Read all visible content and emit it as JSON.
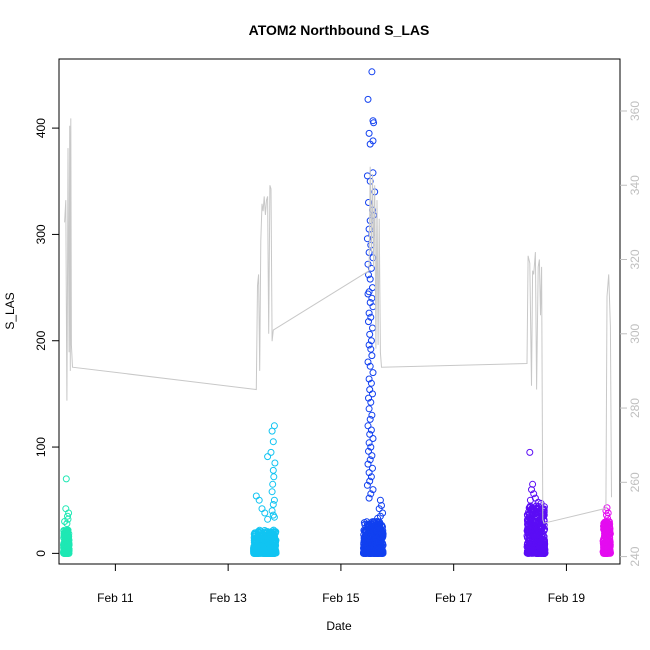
{
  "chart_data": {
    "type": "scatter",
    "title": "ATOM2 Northbound S_LAS",
    "xlabel": "Date",
    "ylabel": "S_LAS",
    "x_unit": "days (Feb)",
    "xlim": [
      10.0,
      19.95
    ],
    "ylim": [
      -10,
      465
    ],
    "y_ticks": [
      0,
      100,
      200,
      300,
      400
    ],
    "x_ticks": [
      {
        "v": 11,
        "label": "Feb 11"
      },
      {
        "v": 13,
        "label": "Feb 13"
      },
      {
        "v": 15,
        "label": "Feb 15"
      },
      {
        "v": 17,
        "label": "Feb 17"
      },
      {
        "v": 19,
        "label": "Feb 19"
      }
    ],
    "y2lim": [
      238,
      374
    ],
    "y2_ticks": [
      240,
      260,
      280,
      300,
      320,
      340,
      360
    ],
    "grid": false,
    "clusters": [
      {
        "x0": 10.08,
        "x1": 10.18,
        "color": "#1ee8b4",
        "base_max": 22,
        "outliers": [
          [
            10.13,
            70
          ],
          [
            10.12,
            42
          ],
          [
            10.17,
            38
          ],
          [
            10.15,
            35
          ],
          [
            10.16,
            32
          ],
          [
            10.1,
            30
          ],
          [
            10.14,
            28
          ]
        ]
      },
      {
        "x0": 13.45,
        "x1": 13.85,
        "color": "#11c4f2",
        "base_max": 22,
        "outliers": [
          [
            13.82,
            120
          ],
          [
            13.78,
            115
          ],
          [
            13.8,
            105
          ],
          [
            13.76,
            95
          ],
          [
            13.7,
            91
          ],
          [
            13.83,
            85
          ],
          [
            13.8,
            78
          ],
          [
            13.81,
            72
          ],
          [
            13.79,
            65
          ],
          [
            13.78,
            58
          ],
          [
            13.5,
            54
          ],
          [
            13.55,
            50
          ],
          [
            13.82,
            50
          ],
          [
            13.8,
            46
          ],
          [
            13.6,
            42
          ],
          [
            13.78,
            40
          ],
          [
            13.65,
            38
          ],
          [
            13.8,
            36
          ],
          [
            13.82,
            34
          ],
          [
            13.7,
            32
          ]
        ]
      },
      {
        "x0": 15.4,
        "x1": 15.75,
        "color": "#1140f0",
        "base_max": 30,
        "outliers": [
          [
            15.55,
            453
          ],
          [
            15.48,
            427
          ],
          [
            15.57,
            407
          ],
          [
            15.58,
            405
          ],
          [
            15.5,
            395
          ],
          [
            15.57,
            388
          ],
          [
            15.52,
            385
          ],
          [
            15.57,
            358
          ],
          [
            15.47,
            355
          ],
          [
            15.52,
            350
          ],
          [
            15.6,
            340
          ],
          [
            15.49,
            330
          ],
          [
            15.56,
            323
          ],
          [
            15.58,
            318
          ],
          [
            15.52,
            313
          ],
          [
            15.5,
            305
          ],
          [
            15.55,
            300
          ],
          [
            15.47,
            296
          ],
          [
            15.53,
            290
          ],
          [
            15.5,
            283
          ],
          [
            15.57,
            278
          ],
          [
            15.48,
            272
          ],
          [
            15.54,
            268
          ],
          [
            15.49,
            262
          ],
          [
            15.52,
            258
          ],
          [
            15.56,
            250
          ],
          [
            15.5,
            246
          ],
          [
            15.48,
            244
          ],
          [
            15.55,
            240
          ],
          [
            15.52,
            236
          ],
          [
            15.57,
            232
          ],
          [
            15.5,
            226
          ],
          [
            15.53,
            222
          ],
          [
            15.49,
            218
          ],
          [
            15.56,
            212
          ],
          [
            15.51,
            206
          ],
          [
            15.54,
            200
          ],
          [
            15.5,
            196
          ],
          [
            15.53,
            192
          ],
          [
            15.55,
            186
          ],
          [
            15.48,
            180
          ],
          [
            15.52,
            176
          ],
          [
            15.57,
            170
          ],
          [
            15.5,
            164
          ],
          [
            15.54,
            160
          ],
          [
            15.51,
            154
          ],
          [
            15.56,
            150
          ],
          [
            15.49,
            146
          ],
          [
            15.53,
            142
          ],
          [
            15.5,
            136
          ],
          [
            15.55,
            130
          ],
          [
            15.52,
            126
          ],
          [
            15.48,
            120
          ],
          [
            15.54,
            116
          ],
          [
            15.51,
            112
          ],
          [
            15.57,
            108
          ],
          [
            15.5,
            104
          ],
          [
            15.53,
            100
          ],
          [
            15.49,
            96
          ],
          [
            15.55,
            92
          ],
          [
            15.52,
            88
          ],
          [
            15.48,
            84
          ],
          [
            15.56,
            80
          ],
          [
            15.5,
            76
          ],
          [
            15.54,
            72
          ],
          [
            15.51,
            68
          ],
          [
            15.47,
            64
          ],
          [
            15.57,
            60
          ],
          [
            15.53,
            56
          ],
          [
            15.5,
            52
          ],
          [
            15.7,
            50
          ],
          [
            15.72,
            45
          ],
          [
            15.68,
            42
          ],
          [
            15.74,
            38
          ],
          [
            15.7,
            35
          ],
          [
            15.65,
            33
          ]
        ]
      },
      {
        "x0": 18.3,
        "x1": 18.62,
        "color": "#5b0df5",
        "base_max": 45,
        "outliers": [
          [
            18.35,
            95
          ],
          [
            18.4,
            65
          ],
          [
            18.38,
            60
          ],
          [
            18.42,
            56
          ],
          [
            18.45,
            52
          ],
          [
            18.36,
            50
          ],
          [
            18.5,
            48
          ],
          [
            18.55,
            47
          ]
        ]
      },
      {
        "x0": 19.65,
        "x1": 19.78,
        "color": "#e40cf0",
        "base_max": 30,
        "outliers": [
          [
            19.72,
            43
          ],
          [
            19.7,
            40
          ],
          [
            19.74,
            38
          ],
          [
            19.71,
            36
          ],
          [
            19.73,
            33
          ]
        ]
      }
    ],
    "overlay_line": {
      "color": "#c8c8c8",
      "axis": "right",
      "points": [
        [
          10.1,
          330
        ],
        [
          10.12,
          336
        ],
        [
          10.13,
          310
        ],
        [
          10.14,
          282
        ],
        [
          10.15,
          314
        ],
        [
          10.16,
          350
        ],
        [
          10.17,
          320
        ],
        [
          10.18,
          295
        ],
        [
          10.19,
          356
        ],
        [
          10.2,
          290
        ],
        [
          10.21,
          358
        ],
        [
          10.22,
          297
        ],
        [
          10.24,
          291
        ],
        [
          13.5,
          285
        ],
        [
          13.52,
          313
        ],
        [
          13.54,
          316
        ],
        [
          13.56,
          290
        ],
        [
          13.58,
          325
        ],
        [
          13.6,
          335
        ],
        [
          13.62,
          333
        ],
        [
          13.64,
          337
        ],
        [
          13.66,
          332
        ],
        [
          13.68,
          336
        ],
        [
          13.7,
          337
        ],
        [
          13.72,
          300
        ],
        [
          13.74,
          340
        ],
        [
          13.76,
          339
        ],
        [
          13.78,
          298
        ],
        [
          13.8,
          301
        ],
        [
          15.5,
          317
        ],
        [
          15.52,
          345
        ],
        [
          15.54,
          322
        ],
        [
          15.56,
          343
        ],
        [
          15.58,
          318
        ],
        [
          15.6,
          340
        ],
        [
          15.62,
          296
        ],
        [
          15.64,
          336
        ],
        [
          15.66,
          297
        ],
        [
          15.68,
          331
        ],
        [
          15.7,
          295
        ],
        [
          15.72,
          291
        ],
        [
          18.3,
          292
        ],
        [
          18.32,
          321
        ],
        [
          18.35,
          319
        ],
        [
          18.38,
          286
        ],
        [
          18.4,
          317
        ],
        [
          18.42,
          316
        ],
        [
          18.45,
          322
        ],
        [
          18.47,
          285
        ],
        [
          18.5,
          318
        ],
        [
          18.52,
          320
        ],
        [
          18.54,
          305
        ],
        [
          18.56,
          318
        ],
        [
          18.58,
          250
        ],
        [
          18.6,
          249
        ],
        [
          19.7,
          253
        ],
        [
          19.72,
          310
        ],
        [
          19.75,
          316
        ],
        [
          19.78,
          302
        ],
        [
          19.8,
          256
        ]
      ]
    }
  }
}
